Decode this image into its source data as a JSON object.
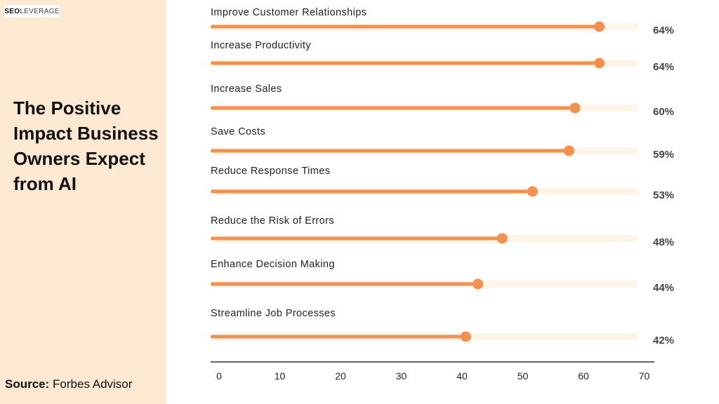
{
  "brand": {
    "logo_bold": "SEO",
    "logo_light": "LEVERAGE"
  },
  "panel": {
    "title": "The Positive Impact Business Owners Expect from AI",
    "source_label": "Source:",
    "source_value": "Forbes Advisor"
  },
  "colors": {
    "bar": "#f58f4e",
    "track": "#fbf6e8",
    "panel": "#fde8d2",
    "axis": "#333333"
  },
  "chart_data": {
    "type": "bar",
    "orientation": "horizontal",
    "categories": [
      "Improve Customer Relationships",
      "Increase Productivity",
      "Increase Sales",
      "Save Costs",
      "Reduce Response Times",
      "Reduce the Risk of Errors",
      "Enhance Decision Making",
      "Streamline Job Processes"
    ],
    "values": [
      64,
      64,
      60,
      59,
      53,
      48,
      44,
      42
    ],
    "value_labels": [
      "64%",
      "64%",
      "60%",
      "59%",
      "53%",
      "48%",
      "44%",
      "42%"
    ],
    "xticks": [
      0,
      10,
      20,
      30,
      40,
      50,
      60,
      70
    ],
    "xlim": [
      0,
      70
    ],
    "grid": false,
    "legend": "none"
  }
}
